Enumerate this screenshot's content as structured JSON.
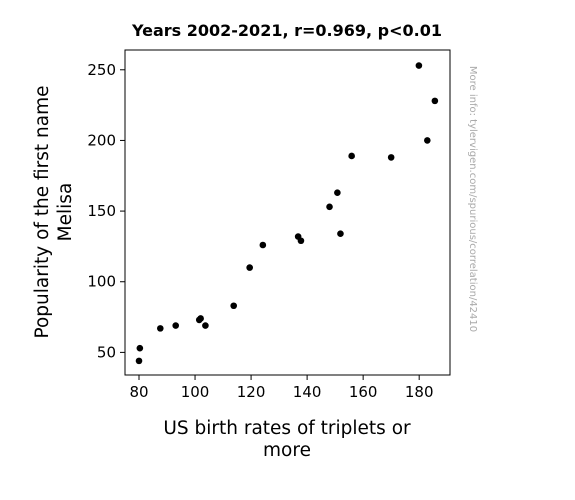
{
  "chart_data": {
    "type": "scatter",
    "title": "Years 2002-2021, r=0.969, p<0.01",
    "xlabel_lines": [
      "US birth rates of triplets or",
      "more"
    ],
    "ylabel_lines": [
      "Popularity of the first name",
      "Melisa"
    ],
    "watermark": "More info: tylervigen.com/spurious/correlation/42410",
    "xlim": [
      75,
      191
    ],
    "ylim": [
      34,
      264
    ],
    "xticks": [
      80,
      100,
      120,
      140,
      160,
      180
    ],
    "yticks": [
      50,
      100,
      150,
      200,
      250
    ],
    "grid": false,
    "marker_color": "#000000",
    "points": [
      {
        "x": 80.0,
        "y": 44
      },
      {
        "x": 80.3,
        "y": 53
      },
      {
        "x": 87.6,
        "y": 67
      },
      {
        "x": 93.1,
        "y": 69
      },
      {
        "x": 101.5,
        "y": 73
      },
      {
        "x": 102.0,
        "y": 74
      },
      {
        "x": 103.7,
        "y": 69
      },
      {
        "x": 113.8,
        "y": 83
      },
      {
        "x": 119.5,
        "y": 110
      },
      {
        "x": 124.2,
        "y": 126
      },
      {
        "x": 136.8,
        "y": 132
      },
      {
        "x": 137.8,
        "y": 129
      },
      {
        "x": 148.0,
        "y": 153
      },
      {
        "x": 150.8,
        "y": 163
      },
      {
        "x": 151.9,
        "y": 134
      },
      {
        "x": 155.9,
        "y": 189
      },
      {
        "x": 170.0,
        "y": 188
      },
      {
        "x": 179.9,
        "y": 253
      },
      {
        "x": 182.9,
        "y": 200
      },
      {
        "x": 185.6,
        "y": 228
      }
    ]
  }
}
